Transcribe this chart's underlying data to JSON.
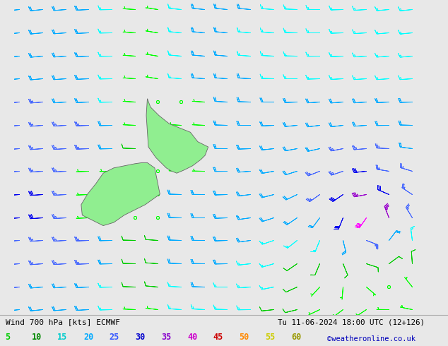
{
  "title_left": "Wind 700 hPa [kts] ECMWF",
  "title_right": "Tu 11-06-2024 18:00 UTC (12+126)",
  "credit": "©weatheronline.co.uk",
  "background_color": "#e8e8e8",
  "land_color": "#90ee90",
  "figsize": [
    6.34,
    4.9
  ],
  "dpi": 100,
  "legend_values": [
    5,
    10,
    15,
    20,
    25,
    30,
    35,
    40,
    45,
    50,
    55,
    60
  ],
  "legend_text_colors": [
    "#00cc00",
    "#008800",
    "#00cccc",
    "#00aaff",
    "#3355ff",
    "#0000cc",
    "#8800cc",
    "#cc00cc",
    "#cc0000",
    "#ff8800",
    "#cccc00",
    "#999900"
  ]
}
